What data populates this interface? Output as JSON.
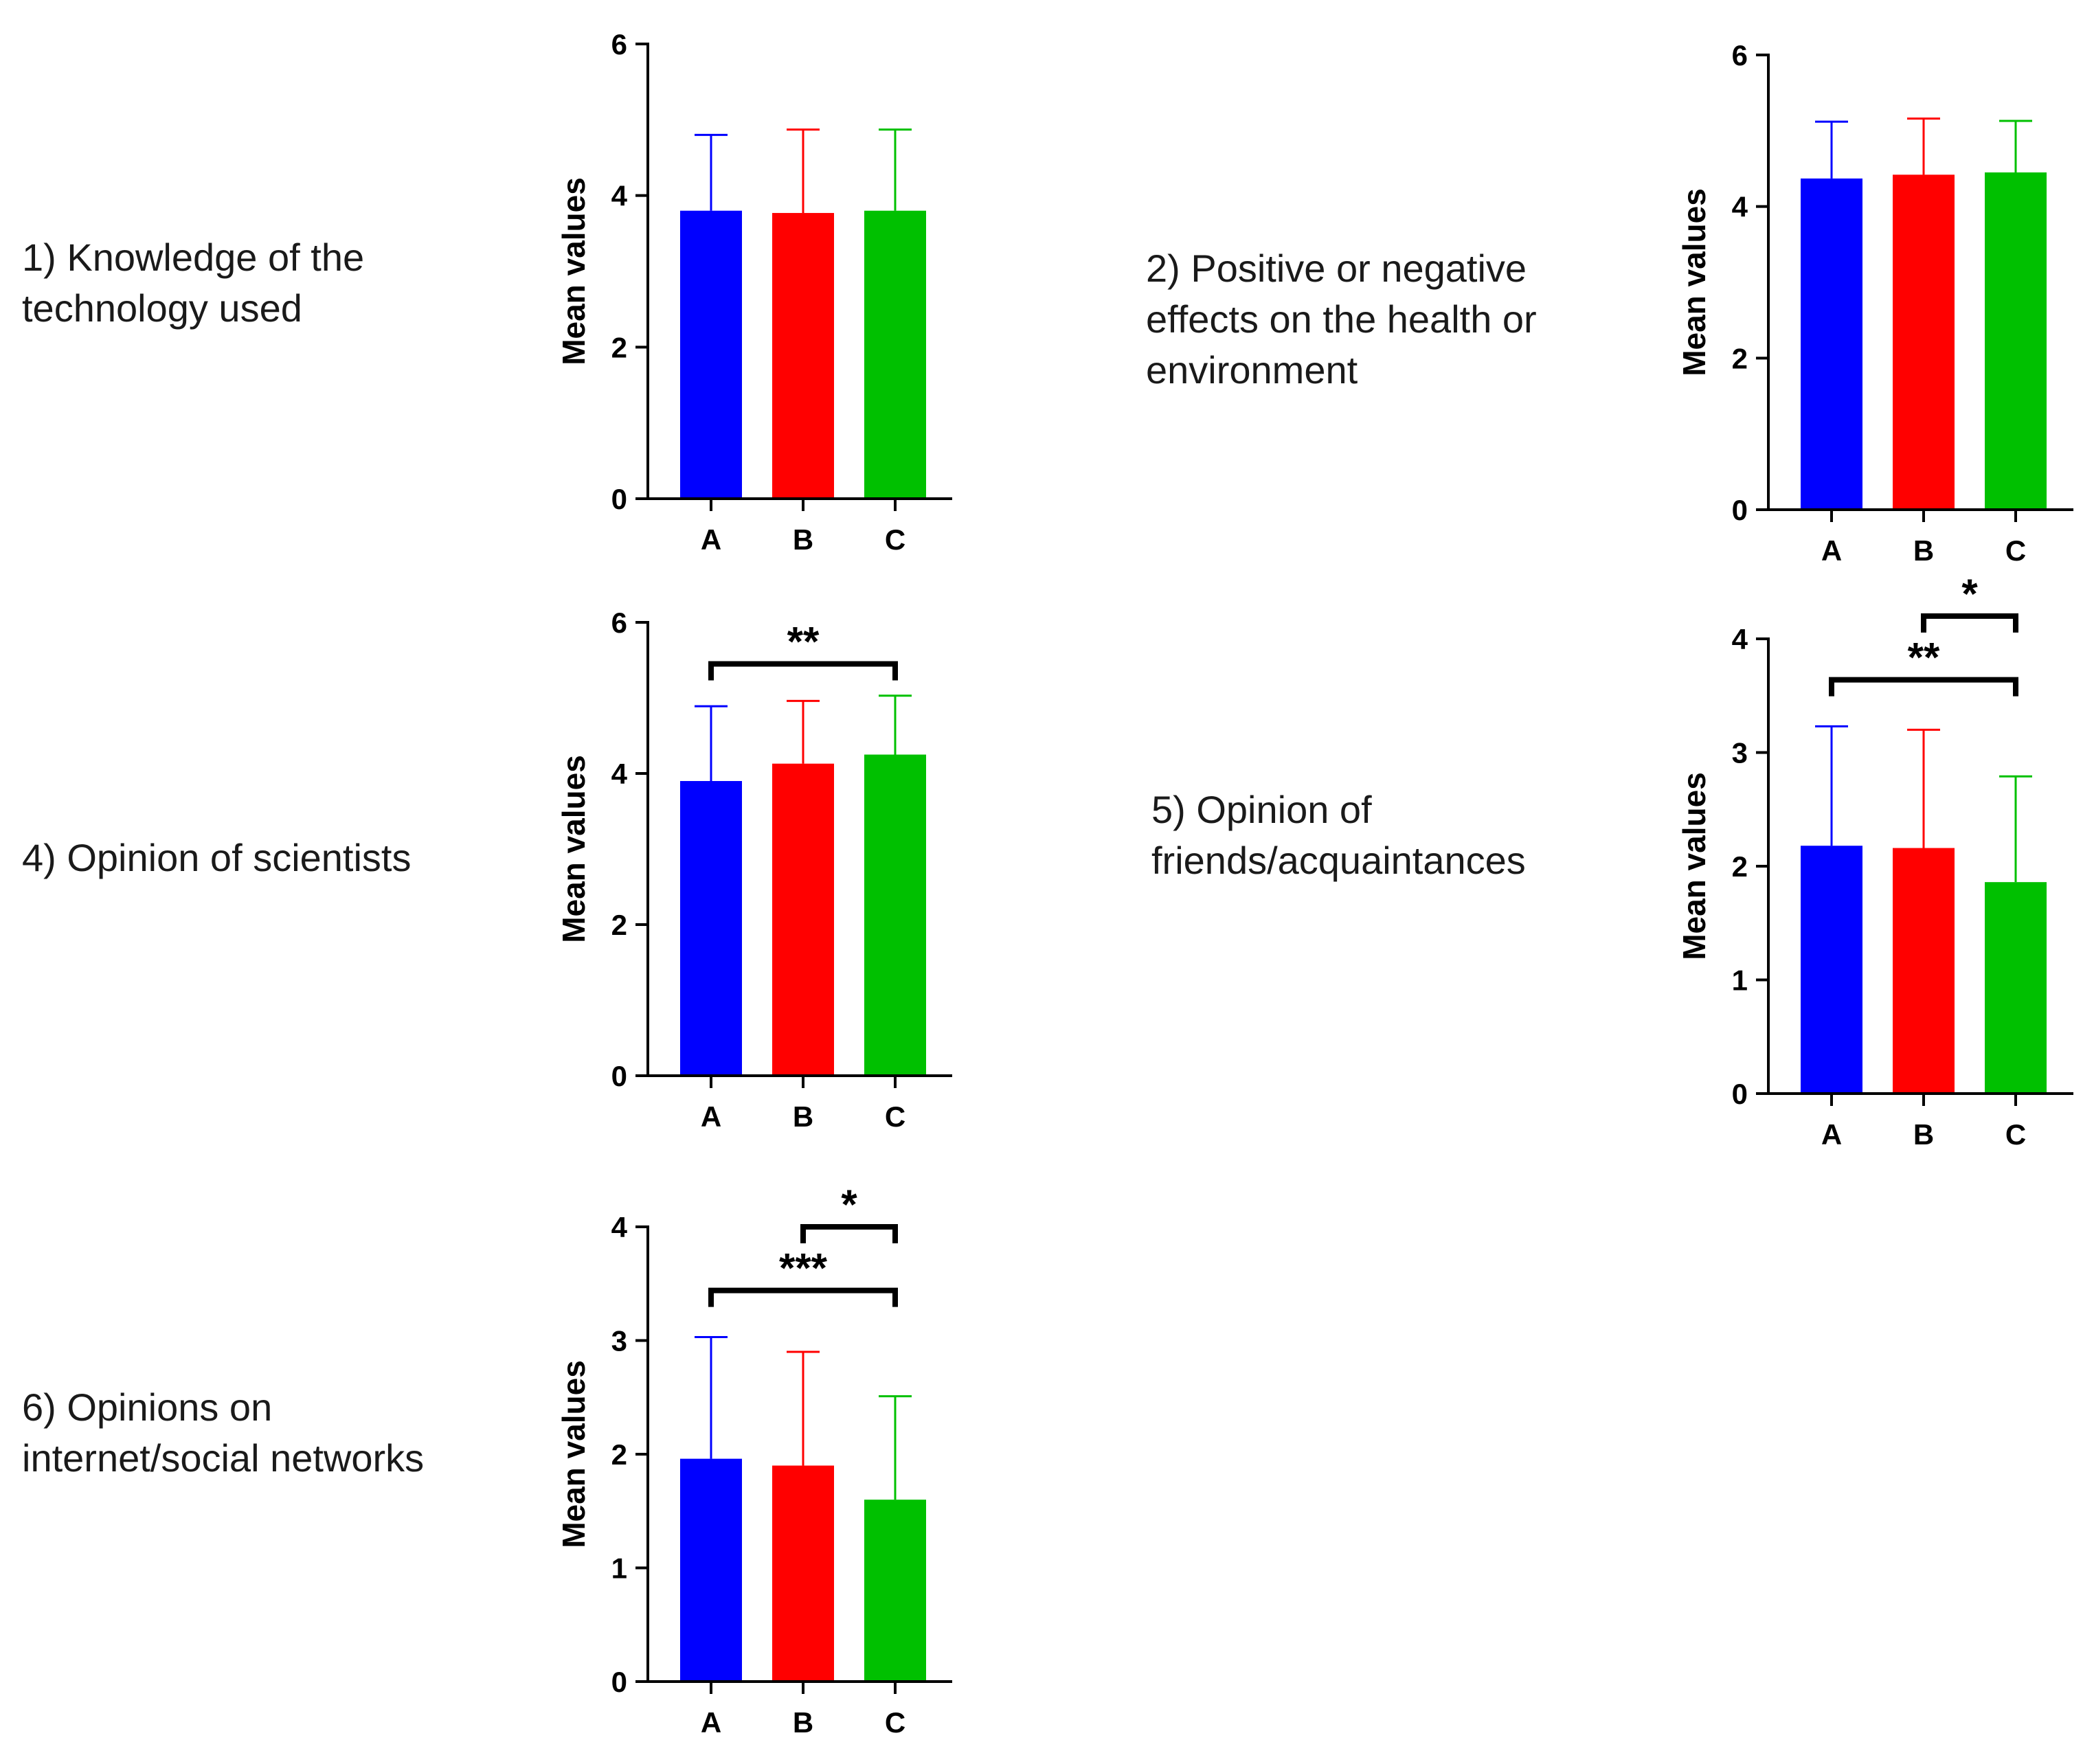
{
  "chart_data": [
    {
      "type": "bar",
      "title": "1) Knowledge of the technology used",
      "title_lines": [
        "1) Knowledge of the",
        "technology used"
      ],
      "categories": [
        "A",
        "B",
        "C"
      ],
      "values": [
        3.8,
        3.77,
        3.8
      ],
      "errors": [
        1.0,
        1.1,
        1.07
      ],
      "colors": [
        "#0000ff",
        "#ff0000",
        "#00c000"
      ],
      "ylabel": "Mean values",
      "xlabel": "",
      "ylim": [
        0,
        6
      ],
      "yticks": [
        0,
        2,
        4,
        6
      ],
      "yticklabels": [
        "0",
        "2",
        "4",
        "6"
      ],
      "significance": []
    },
    {
      "type": "bar",
      "title": "2) Positive or negative effects on the health or environment",
      "title_lines": [
        "2) Positive or negative",
        "effects on the health or",
        "environment"
      ],
      "categories": [
        "A",
        "B",
        "C"
      ],
      "values": [
        4.37,
        4.42,
        4.45
      ],
      "errors": [
        0.75,
        0.74,
        0.68
      ],
      "colors": [
        "#0000ff",
        "#ff0000",
        "#00c000"
      ],
      "ylabel": "Mean values",
      "xlabel": "",
      "ylim": [
        0,
        6
      ],
      "yticks": [
        0,
        2,
        4,
        6
      ],
      "yticklabels": [
        "0",
        "2",
        "4",
        "6"
      ],
      "significance": []
    },
    {
      "type": "bar",
      "title": "4) Opinion of scientists",
      "title_lines": [
        "4) Opinion of scientists"
      ],
      "categories": [
        "A",
        "B",
        "C"
      ],
      "values": [
        3.9,
        4.13,
        4.25
      ],
      "errors": [
        0.99,
        0.83,
        0.78
      ],
      "colors": [
        "#0000ff",
        "#ff0000",
        "#00c000"
      ],
      "ylabel": "Mean values",
      "xlabel": "",
      "ylim": [
        0,
        6
      ],
      "yticks": [
        0,
        2,
        4,
        6
      ],
      "yticklabels": [
        "0",
        "2",
        "4",
        "6"
      ],
      "significance": [
        {
          "from": 0,
          "to": 2,
          "level": 5.45,
          "label": "**"
        }
      ]
    },
    {
      "type": "bar",
      "title": "5) Opinion of friends/acquaintances",
      "title_lines": [
        "5) Opinion of",
        "friends/acquaintances"
      ],
      "categories": [
        "A",
        "B",
        "C"
      ],
      "values": [
        2.18,
        2.16,
        1.86
      ],
      "errors": [
        1.05,
        1.04,
        0.93
      ],
      "colors": [
        "#0000ff",
        "#ff0000",
        "#00c000"
      ],
      "ylabel": "Mean values",
      "xlabel": "",
      "ylim": [
        0,
        4
      ],
      "yticks": [
        0,
        1,
        2,
        3,
        4
      ],
      "yticklabels": [
        "0",
        "1",
        "2",
        "3",
        "4"
      ],
      "significance": [
        {
          "from": 0,
          "to": 2,
          "level": 3.64,
          "label": "**"
        },
        {
          "from": 1,
          "to": 2,
          "level": 4.2,
          "label": "*"
        }
      ]
    },
    {
      "type": "bar",
      "title": "6) Opinions on internet/social networks",
      "title_lines": [
        "6) Opinions on",
        "internet/social networks"
      ],
      "categories": [
        "A",
        "B",
        "C"
      ],
      "values": [
        1.96,
        1.9,
        1.6
      ],
      "errors": [
        1.07,
        1.0,
        0.91
      ],
      "colors": [
        "#0000ff",
        "#ff0000",
        "#00c000"
      ],
      "ylabel": "Mean values",
      "xlabel": "",
      "ylim": [
        0,
        4
      ],
      "yticks": [
        0,
        1,
        2,
        3,
        4
      ],
      "yticklabels": [
        "0",
        "1",
        "2",
        "3",
        "4"
      ],
      "significance": [
        {
          "from": 0,
          "to": 2,
          "level": 3.44,
          "label": "***"
        },
        {
          "from": 1,
          "to": 2,
          "level": 4.0,
          "label": "*"
        }
      ]
    }
  ]
}
